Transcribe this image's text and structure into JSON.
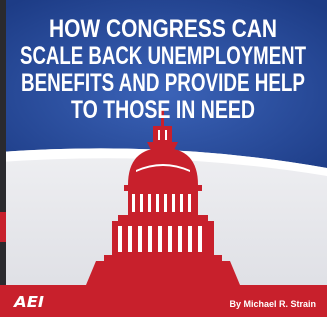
{
  "cover": {
    "title_lines": [
      "HOW CONGRESS CAN",
      "SCALE BACK UNEMPLOYMENT",
      "BENEFITS AND PROVIDE HELP",
      "TO THOSE IN NEED"
    ],
    "logo": "AEI",
    "byline": "By Michael R. Strain"
  }
}
